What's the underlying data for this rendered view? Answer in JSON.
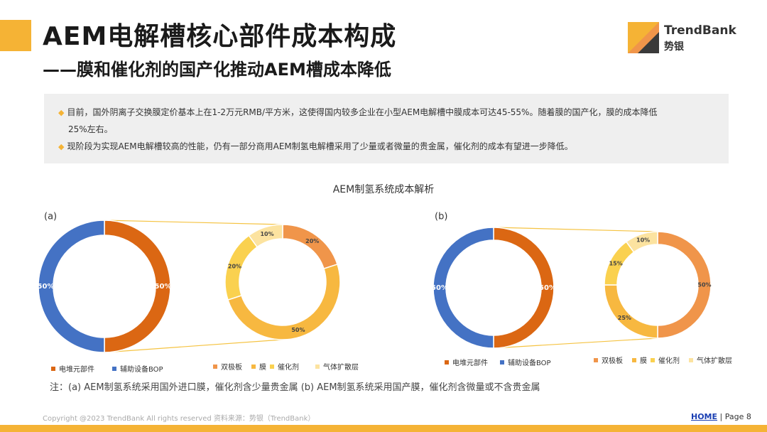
{
  "header": {
    "title": "AEM电解槽核心部件成本构成",
    "subtitle": "——膜和催化剂的国产化推动AEM槽成本降低"
  },
  "logo": {
    "en": "TrendBank",
    "cn": "势银"
  },
  "notes": {
    "line1": "目前，国外阴离子交换膜定价基本上在1-2万元RMB/平方米，这使得国内较多企业在小型AEM电解槽中膜成本可达45-55%。随着膜的国产化，膜的成本降低",
    "line1_cont": "25%左右。",
    "line2": "现阶段为实现AEM电解槽较高的性能，仍有一部分商用AEM制氢电解槽采用了少量或者微量的贵金属，催化剂的成本有望进一步降低。"
  },
  "chart_title": "AEM制氢系统成本解析",
  "colors": {
    "stack": "#DB6713",
    "bop": "#4472C4",
    "bipolar": "#F0954A",
    "membrane": "#F7B840",
    "catalyst": "#FAD14F",
    "gdl": "#FCE3A0",
    "connector": "#F5C342"
  },
  "chart_data": [
    {
      "id": "a",
      "label": "(a)",
      "main": {
        "type": "pie",
        "categories": [
          "电堆元部件",
          "辅助设备BOP"
        ],
        "values": [
          50,
          50
        ],
        "labels": [
          "50%",
          "50%"
        ]
      },
      "breakdown": {
        "type": "pie",
        "categories": [
          "双极板",
          "膜",
          "催化剂",
          "气体扩散层"
        ],
        "values": [
          20,
          50,
          20,
          10
        ],
        "labels": [
          "20%",
          "50%",
          "20%",
          "10%"
        ]
      }
    },
    {
      "id": "b",
      "label": "(b)",
      "main": {
        "type": "pie",
        "categories": [
          "电堆元部件",
          "辅助设备BOP"
        ],
        "values": [
          50,
          50
        ],
        "labels": [
          "50%",
          "50%"
        ]
      },
      "breakdown": {
        "type": "pie",
        "categories": [
          "双极板",
          "膜",
          "催化剂",
          "气体扩散层"
        ],
        "values": [
          50,
          25,
          15,
          10
        ],
        "labels": [
          "50%",
          "25%",
          "15%",
          "10%"
        ]
      }
    }
  ],
  "footnote": "注：(a) AEM制氢系统采用国外进口膜，催化剂含少量贵金属 (b) AEM制氢系统采用国产膜，催化剂含微量或不含贵金属",
  "footer": {
    "copyright": "Copyright @2023 TrendBank All rights reserved    资料来源：势银（TrendBank）",
    "home": "HOME",
    "page_label": " | Page ",
    "page_number": "8"
  }
}
